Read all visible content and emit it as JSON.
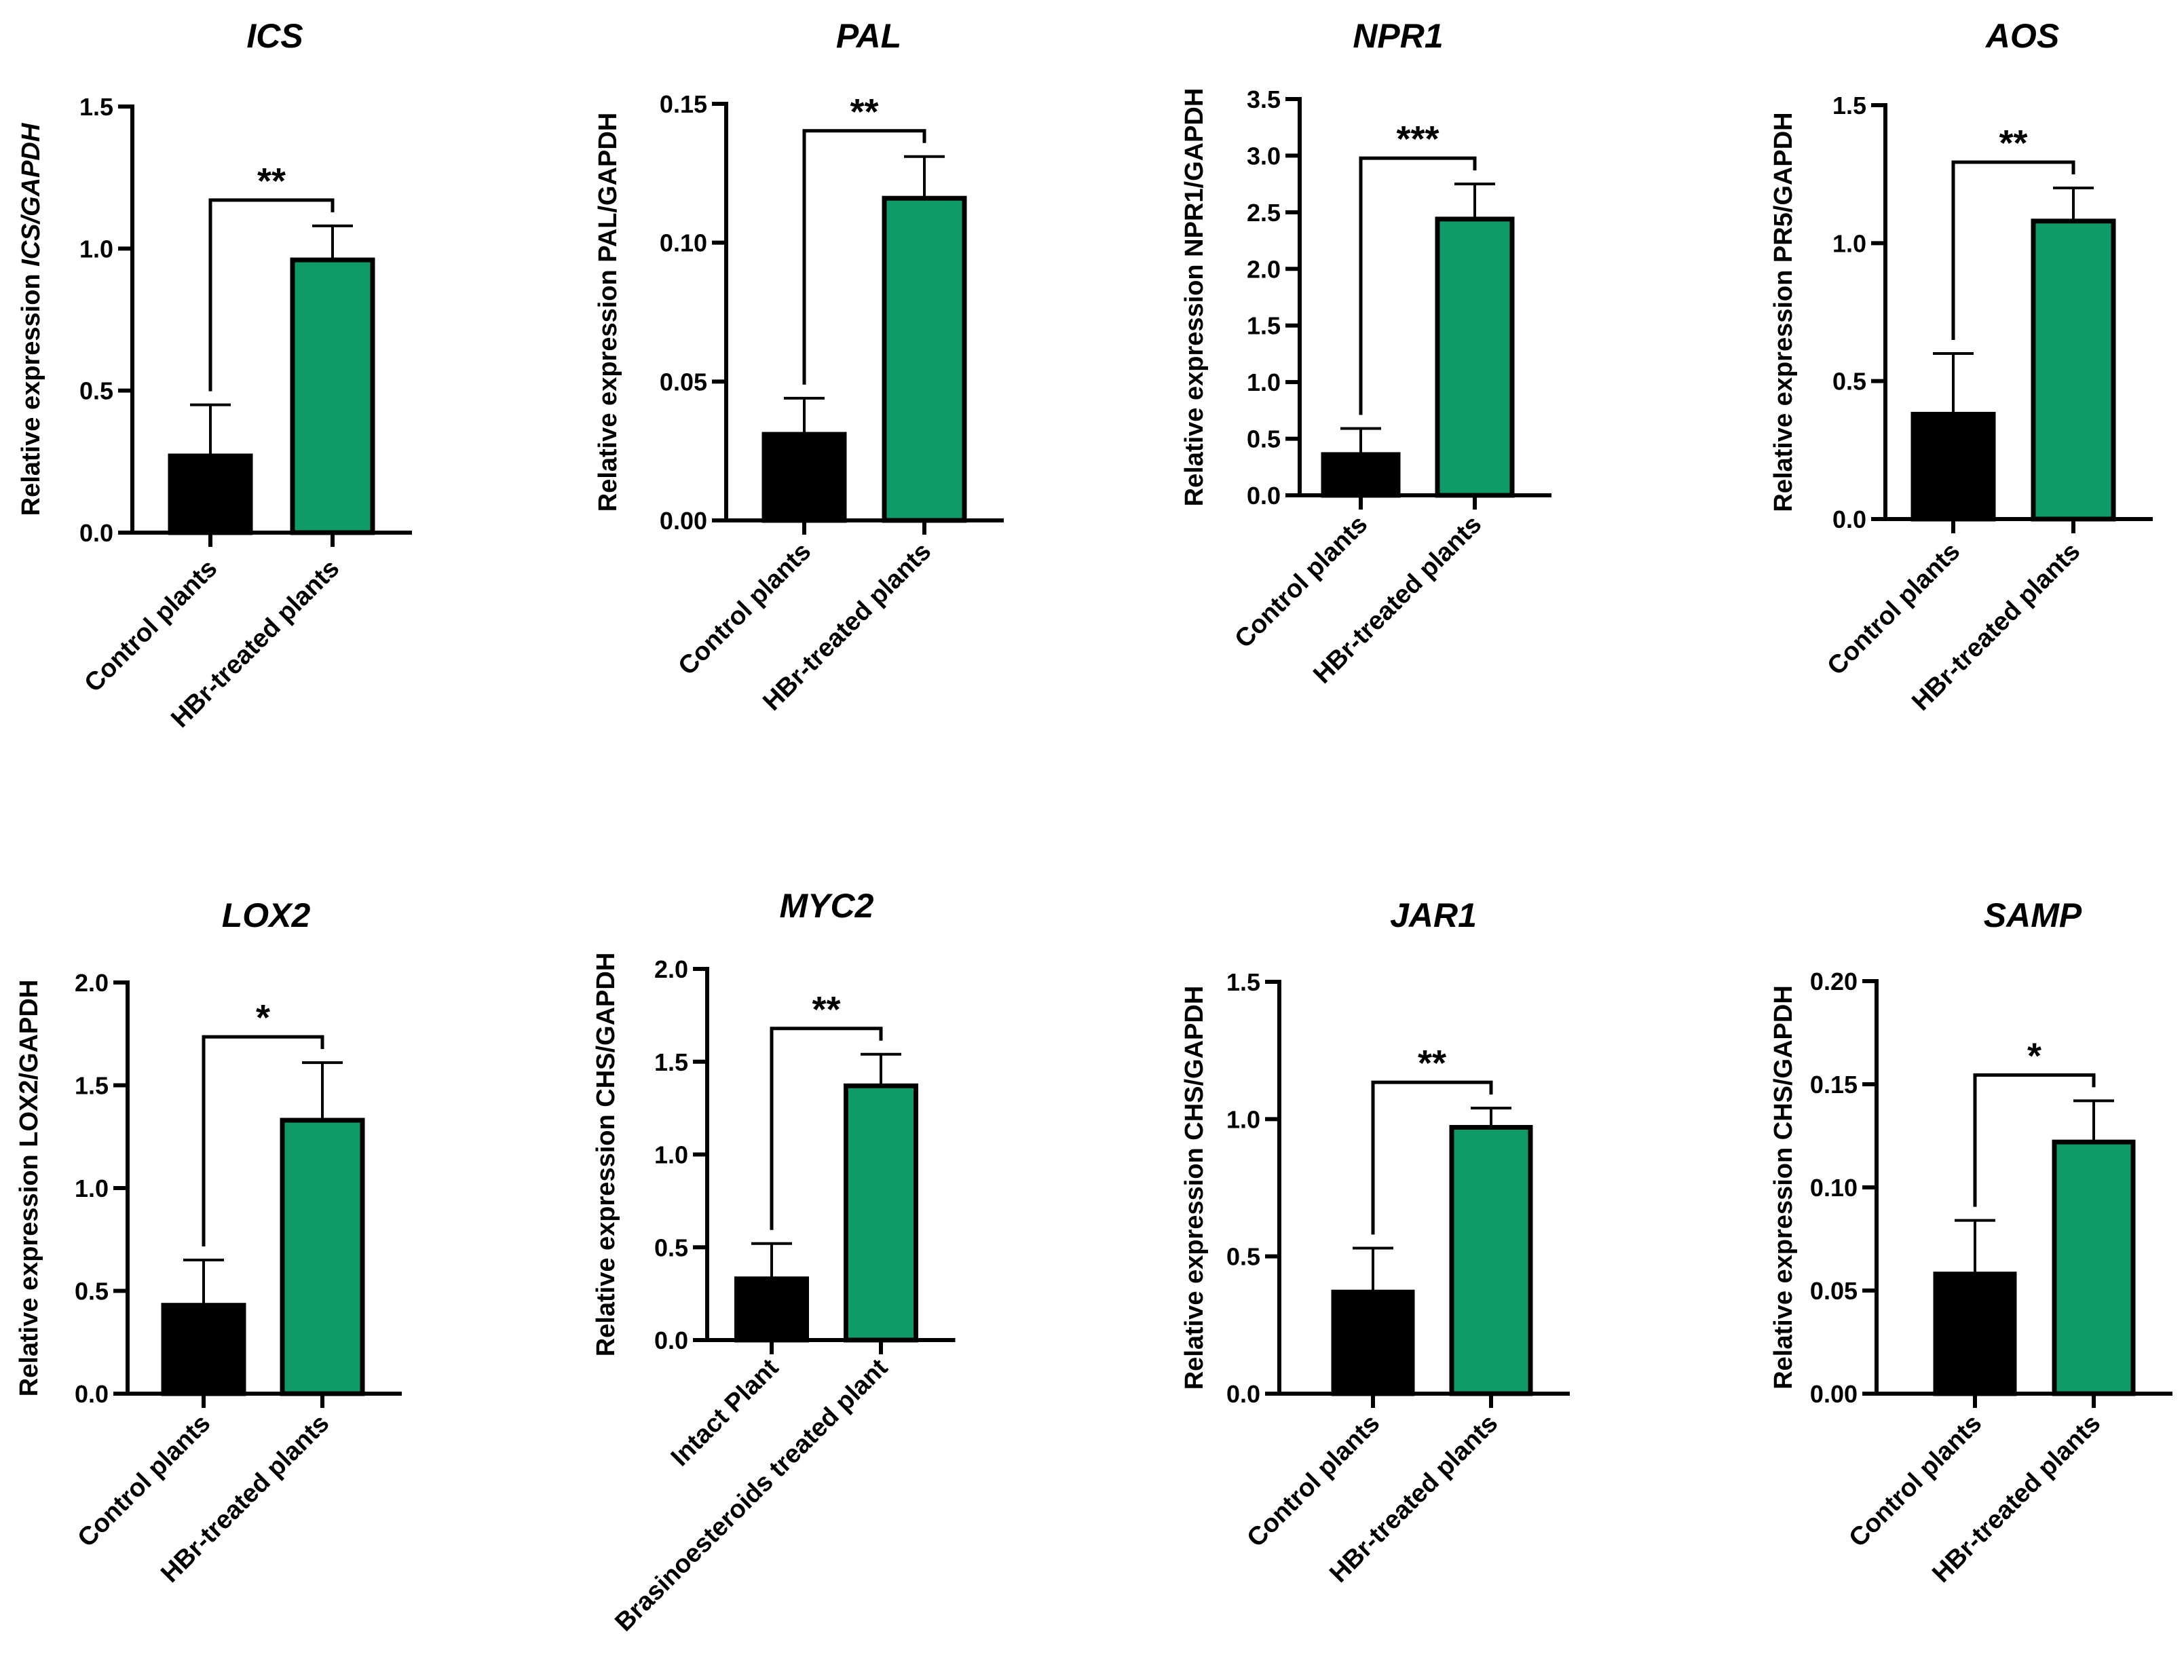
{
  "colors": {
    "control": "#000000",
    "treated": "#0f9b68",
    "edge": "#000000"
  },
  "chart_data": [
    {
      "type": "bar",
      "title": "ICS",
      "ylabel": "Relative expression ICS/GAPDH",
      "ylabel_parts": [
        {
          "text": "Relative expression ",
          "italic": false
        },
        {
          "text": "ICS/GAPDH",
          "italic": true
        }
      ],
      "categories": [
        "Control plants",
        "HBr-treated plants"
      ],
      "values": [
        0.27,
        0.96
      ],
      "errors": [
        0.18,
        0.12
      ],
      "ylim": [
        0,
        1.5
      ],
      "yticks": [
        0,
        0.5,
        1.0,
        1.5
      ],
      "ytick_labels": [
        "0.0",
        "0.5",
        "1.0",
        "1.5"
      ],
      "significance": "**"
    },
    {
      "type": "bar",
      "title": "PAL",
      "ylabel": "Relative expression PAL/GAPDH",
      "categories": [
        "Control plants",
        "HBr-treated plants"
      ],
      "values": [
        0.031,
        0.116
      ],
      "errors": [
        0.013,
        0.015
      ],
      "ylim": [
        0,
        0.15
      ],
      "yticks": [
        0,
        0.05,
        0.1,
        0.15
      ],
      "ytick_labels": [
        "0.00",
        "0.05",
        "0.10",
        "0.15"
      ],
      "significance": "**"
    },
    {
      "type": "bar",
      "title": "NPR1",
      "ylabel": "Relative expression NPR1/GAPDH",
      "categories": [
        "Control plants",
        "HBr-treated plants"
      ],
      "values": [
        0.36,
        2.44
      ],
      "errors": [
        0.23,
        0.31
      ],
      "ylim": [
        0,
        3.5
      ],
      "yticks": [
        0,
        0.5,
        1.0,
        1.5,
        2.0,
        2.5,
        3.0,
        3.5
      ],
      "ytick_labels": [
        "0.0",
        "0.5",
        "1.0",
        "1.5",
        "2.0",
        "2.5",
        "3.0",
        "3.5"
      ],
      "significance": "***"
    },
    {
      "type": "bar",
      "title": "AOS",
      "ylabel": "Relative expression PR5/GAPDH",
      "categories": [
        "Control plants",
        "HBr-treated plants"
      ],
      "values": [
        0.38,
        1.08
      ],
      "errors": [
        0.22,
        0.12
      ],
      "ylim": [
        0,
        1.5
      ],
      "yticks": [
        0,
        0.5,
        1.0,
        1.5
      ],
      "ytick_labels": [
        "0.0",
        "0.5",
        "1.0",
        "1.5"
      ],
      "significance": "**"
    },
    {
      "type": "bar",
      "title": "LOX2",
      "ylabel": "Relative expression LOX2/GAPDH",
      "categories": [
        "Control plants",
        "HBr-treated plants"
      ],
      "values": [
        0.43,
        1.33
      ],
      "errors": [
        0.22,
        0.28
      ],
      "ylim": [
        0,
        2.0
      ],
      "yticks": [
        0,
        0.5,
        1.0,
        1.5,
        2.0
      ],
      "ytick_labels": [
        "0.0",
        "0.5",
        "1.0",
        "1.5",
        "2.0"
      ],
      "significance": "*"
    },
    {
      "type": "bar",
      "title": "MYC2",
      "ylabel": "Relative expression CHS/GAPDH",
      "categories": [
        "Intact Plant",
        "Brasinoesteroids treated plant"
      ],
      "values": [
        0.33,
        1.37
      ],
      "errors": [
        0.19,
        0.17
      ],
      "ylim": [
        0,
        2.0
      ],
      "yticks": [
        0,
        0.5,
        1.0,
        1.5,
        2.0
      ],
      "ytick_labels": [
        "0.0",
        "0.5",
        "1.0",
        "1.5",
        "2.0"
      ],
      "significance": "**"
    },
    {
      "type": "bar",
      "title": "JAR1",
      "ylabel": "Relative expression CHS/GAPDH",
      "categories": [
        "Control plants",
        "HBr-treated plants"
      ],
      "values": [
        0.37,
        0.97
      ],
      "errors": [
        0.16,
        0.07
      ],
      "ylim": [
        0,
        1.5
      ],
      "yticks": [
        0,
        0.5,
        1.0,
        1.5
      ],
      "ytick_labels": [
        "0.0",
        "0.5",
        "1.0",
        "1.5"
      ],
      "significance": "**"
    },
    {
      "type": "bar",
      "title": "SAMP",
      "ylabel": "Relative expression CHS/GAPDH",
      "categories": [
        "Control plants",
        "HBr-treated plants"
      ],
      "values": [
        0.058,
        0.122
      ],
      "errors": [
        0.026,
        0.02
      ],
      "ylim": [
        0,
        0.2
      ],
      "yticks": [
        0,
        0.05,
        0.1,
        0.15,
        0.2
      ],
      "ytick_labels": [
        "0.00",
        "0.05",
        "0.10",
        "0.15",
        "0.20"
      ],
      "significance": "*"
    }
  ]
}
